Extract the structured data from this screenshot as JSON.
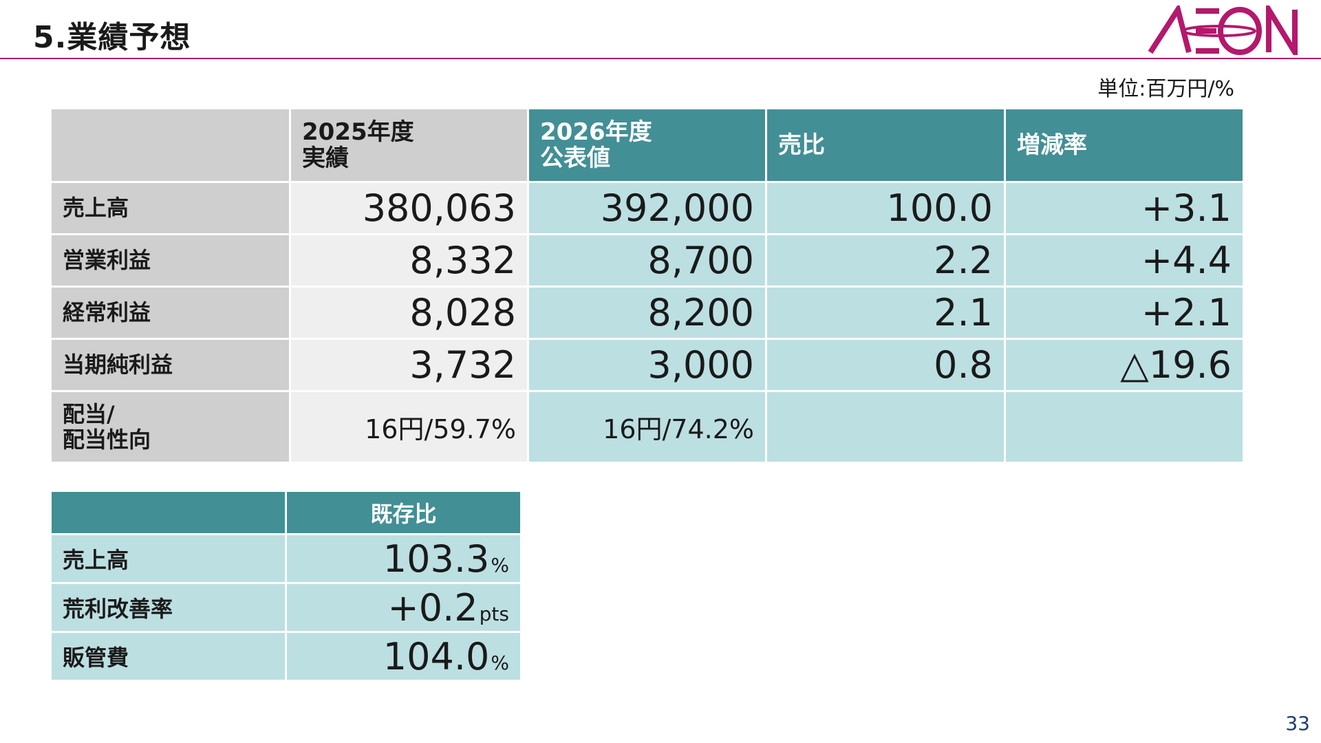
{
  "header": {
    "title": "5.業績予想",
    "logo_text": "ÆON",
    "brand_color": "#b3196c"
  },
  "unit_label": "単位:百万円/%",
  "main_table": {
    "columns": [
      {
        "line1": "",
        "line2": ""
      },
      {
        "line1": "2025年度",
        "line2": "実績"
      },
      {
        "line1": "2026年度",
        "line2": "公表値"
      },
      {
        "line1": "売比",
        "line2": ""
      },
      {
        "line1": "増減率",
        "line2": ""
      }
    ],
    "rows": [
      {
        "label1": "売上高",
        "label2": "",
        "actual": "380,063",
        "forecast": "392,000",
        "ratio": "100.0",
        "change": "+3.1"
      },
      {
        "label1": "営業利益",
        "label2": "",
        "actual": "8,332",
        "forecast": "8,700",
        "ratio": "2.2",
        "change": "+4.4"
      },
      {
        "label1": "経常利益",
        "label2": "",
        "actual": "8,028",
        "forecast": "8,200",
        "ratio": "2.1",
        "change": "+2.1"
      },
      {
        "label1": "当期純利益",
        "label2": "",
        "actual": "3,732",
        "forecast": "3,000",
        "ratio": "0.8",
        "change": "△19.6"
      },
      {
        "label1": "配当/",
        "label2": "配当性向",
        "actual": "16円/59.7%",
        "forecast": "16円/74.2%",
        "ratio": "",
        "change": ""
      }
    ]
  },
  "existing_table": {
    "header": "既存比",
    "rows": [
      {
        "label": "売上高",
        "value": "103.3",
        "suffix": "%"
      },
      {
        "label": "荒利改善率",
        "value": "+0.2",
        "suffix": "pts"
      },
      {
        "label": "販管費",
        "value": "104.0",
        "suffix": "%"
      }
    ]
  },
  "page_number": "33",
  "colors": {
    "teal_header": "#428f95",
    "light_teal": "#bcdfe2",
    "gray": "#cfcfcf",
    "light_gray": "#efefef"
  }
}
